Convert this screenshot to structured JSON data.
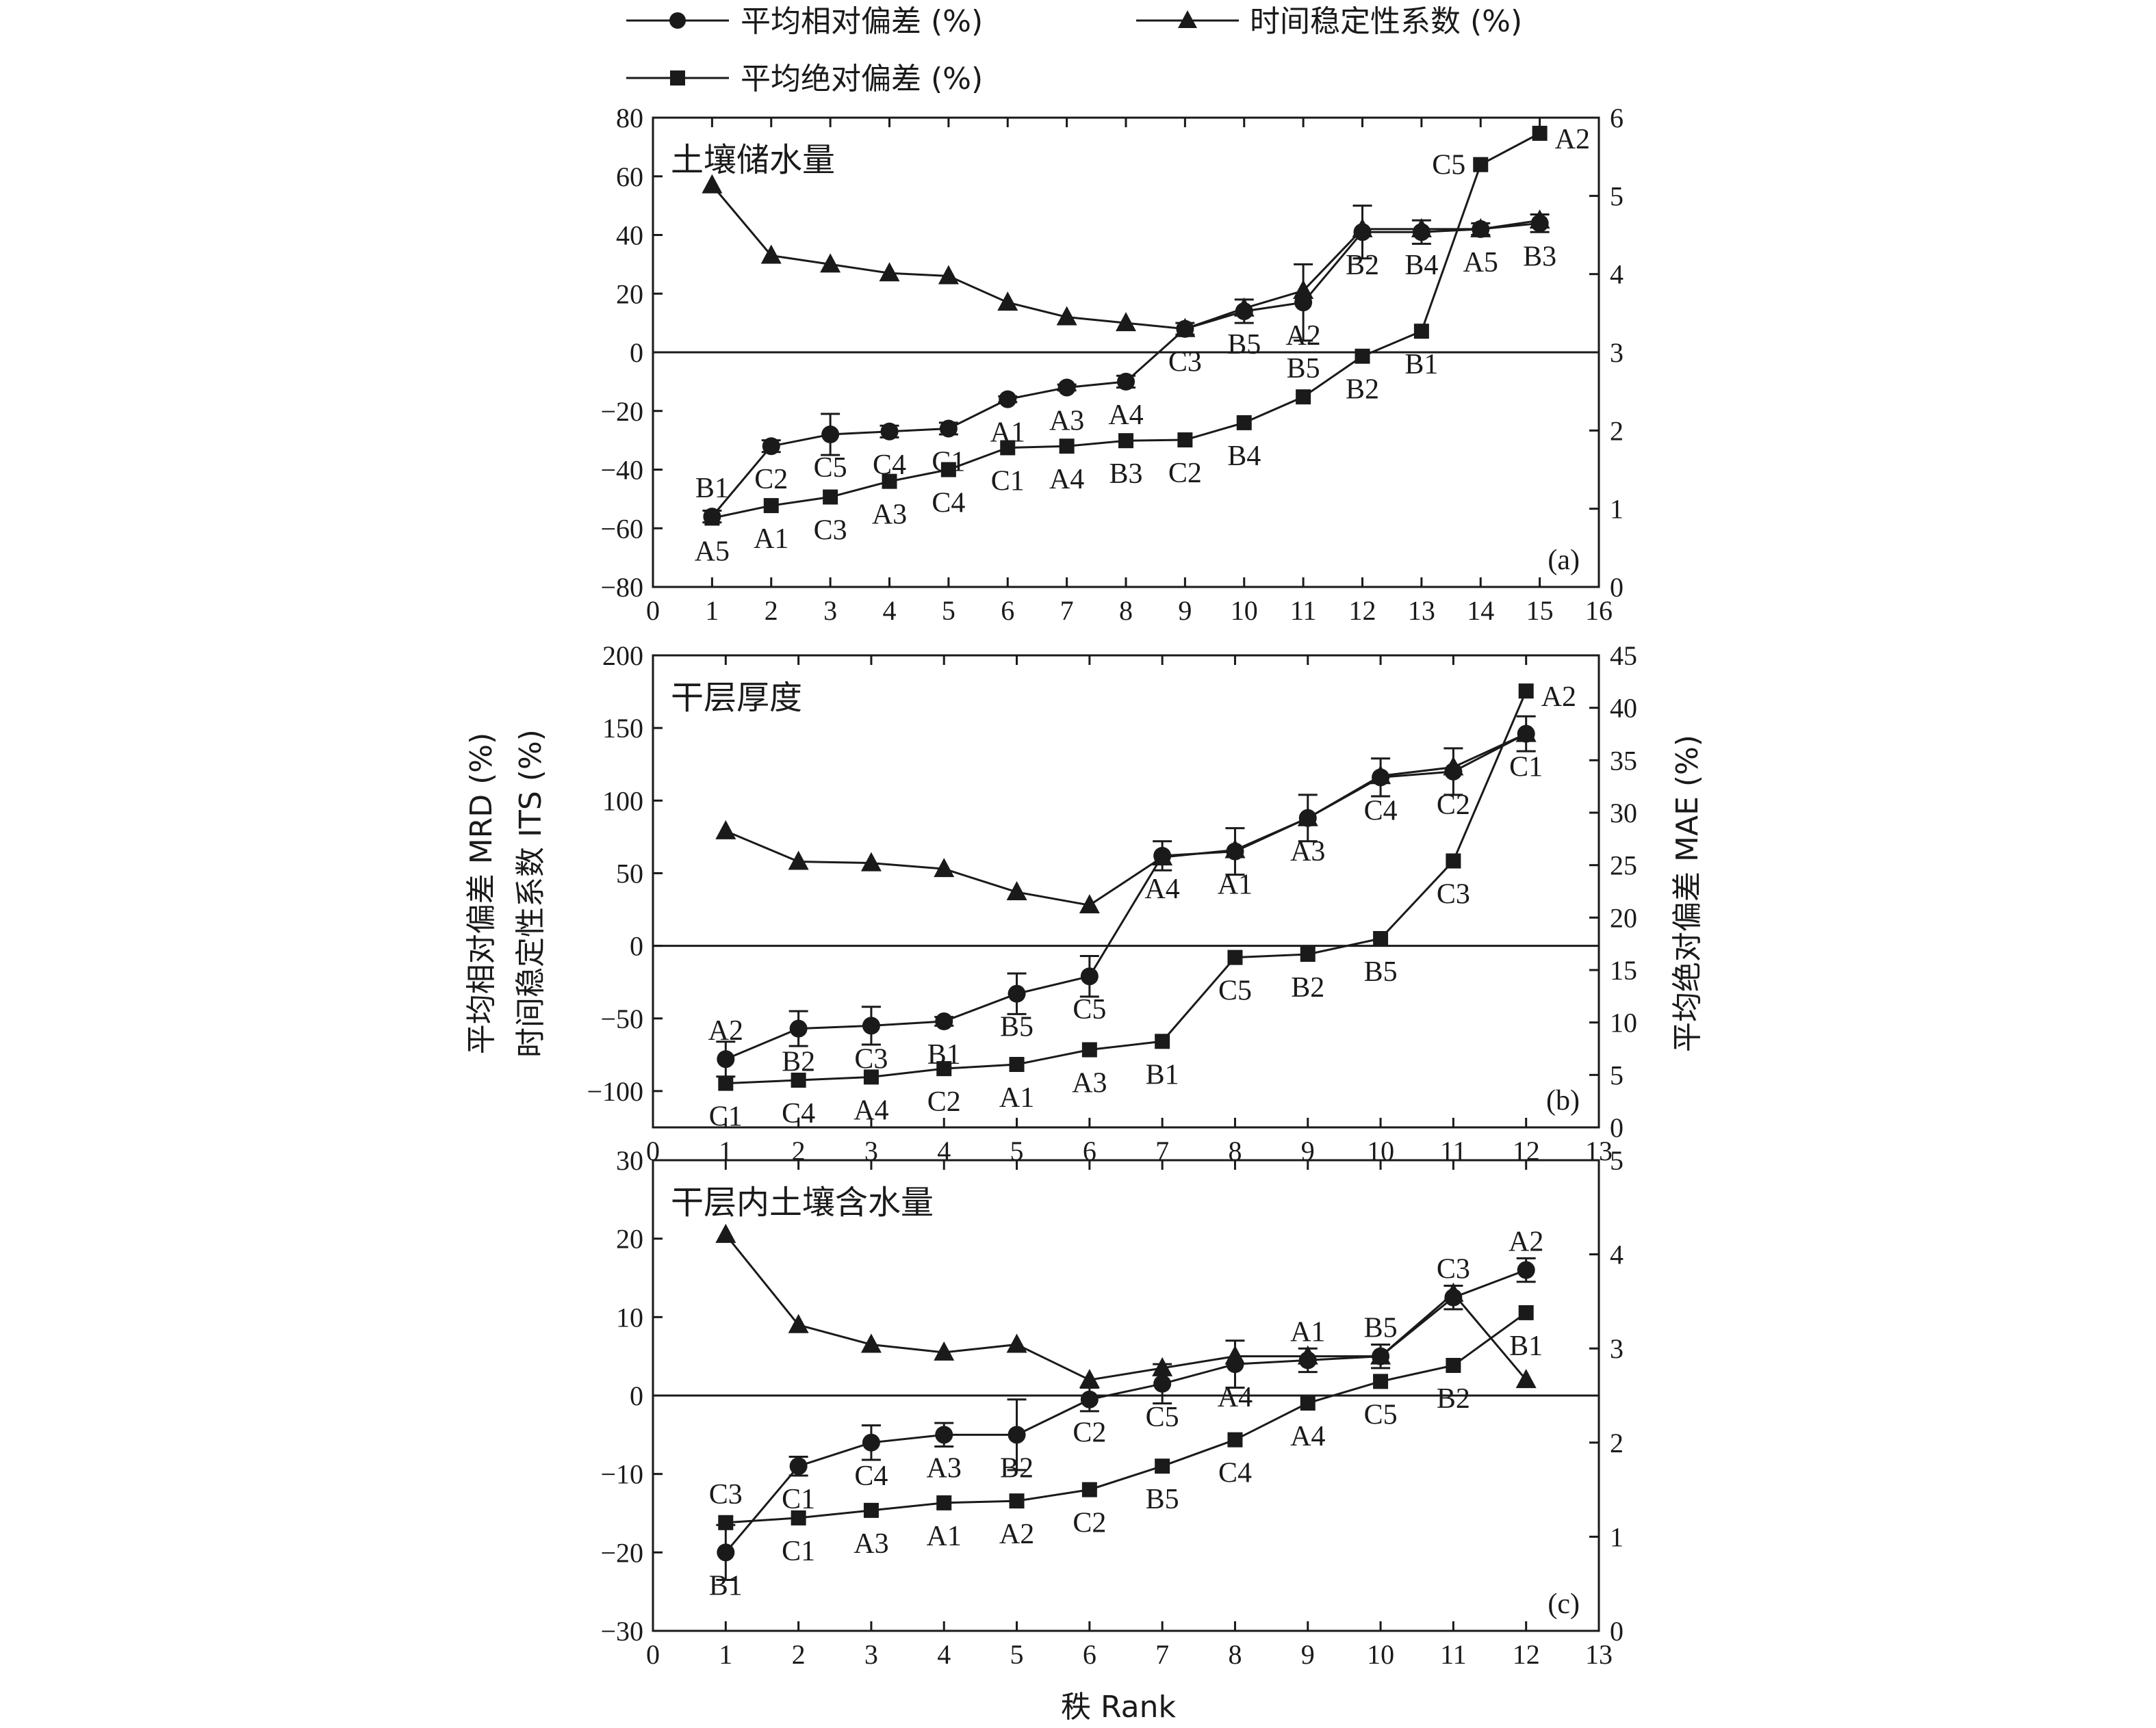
{
  "legend": {
    "entries": [
      {
        "label": "平均相对偏差 (%)",
        "marker": "circle"
      },
      {
        "label": "时间稳定性系数 (%)",
        "marker": "triangle"
      },
      {
        "label": "平均绝对偏差 (%)",
        "marker": "square"
      }
    ]
  },
  "axes": {
    "left_label_line1": "平均相对偏差 MRD (%)",
    "left_label_line2": "时间稳定性系数 ITS (%)",
    "right_label": "平均绝对偏差 MAE (%)",
    "bottom_label": "秩 Rank"
  },
  "colors": {
    "ink": "#1a1a1a",
    "background": "#ffffff"
  },
  "chart_data": [
    {
      "type": "line",
      "panel_tag": "(a)",
      "panel_title": "土壤储水量",
      "xlim": [
        0,
        16
      ],
      "xticks": [
        0,
        1,
        2,
        3,
        4,
        5,
        6,
        7,
        8,
        9,
        10,
        11,
        12,
        13,
        14,
        15,
        16
      ],
      "ylim": [
        -80,
        80
      ],
      "yticks": [
        -80,
        -60,
        -40,
        -20,
        0,
        20,
        40,
        60,
        80
      ],
      "y2lim": [
        0,
        6
      ],
      "y2ticks": [
        0,
        1,
        2,
        3,
        4,
        5,
        6
      ],
      "zero_line": true,
      "series": [
        {
          "name": "平均相对偏差 (%)",
          "marker": "circle",
          "axis": "left",
          "x": [
            1,
            2,
            3,
            4,
            5,
            6,
            7,
            8,
            9,
            10,
            11,
            12,
            13,
            14,
            15
          ],
          "y": [
            -56,
            -32,
            -28,
            -27,
            -26,
            -16,
            -12,
            -10,
            8,
            14,
            17,
            41,
            41,
            42,
            44
          ],
          "err": [
            2,
            2,
            7,
            2,
            2,
            1,
            1,
            2,
            2,
            4,
            13,
            9,
            4,
            2,
            3
          ],
          "labels": [
            "B1",
            "C2",
            "C5",
            "C4",
            "C1",
            "A1",
            "A3",
            "A4",
            "C3",
            "B5",
            "A2",
            "B2",
            "B4",
            "A5",
            "B3"
          ],
          "label_pos": [
            "above",
            "below",
            "below",
            "below",
            "below",
            "below",
            "below",
            "below",
            "below",
            "below",
            "below",
            "below",
            "below",
            "below",
            "below"
          ]
        },
        {
          "name": "时间稳定性系数 (%)",
          "marker": "triangle",
          "axis": "left",
          "x": [
            1,
            2,
            3,
            4,
            5,
            6,
            7,
            8,
            9,
            10,
            11,
            12,
            13,
            14,
            15
          ],
          "y": [
            57,
            33,
            30,
            27,
            26,
            17,
            12,
            10,
            8,
            15,
            21,
            42,
            42,
            42,
            45
          ]
        },
        {
          "name": "平均绝对偏差 (%)",
          "marker": "square",
          "axis": "right",
          "x": [
            1,
            2,
            3,
            4,
            5,
            6,
            7,
            8,
            9,
            10,
            11,
            12,
            13,
            14,
            15
          ],
          "y": [
            0.88,
            1.04,
            1.15,
            1.35,
            1.5,
            1.78,
            1.8,
            1.87,
            1.88,
            2.1,
            2.43,
            2.95,
            3.27,
            5.4,
            5.8
          ],
          "labels": [
            "A5",
            "A1",
            "C3",
            "A3",
            "C4",
            "C1",
            "A4",
            "B3",
            "C2",
            "B4",
            "B5",
            "B2",
            "B1",
            "C5",
            "A2"
          ],
          "label_pos": [
            "below",
            "below",
            "below",
            "below",
            "below",
            "below",
            "below",
            "below",
            "below",
            "below",
            "above",
            "below",
            "below",
            "left",
            "right"
          ]
        }
      ]
    },
    {
      "type": "line",
      "panel_tag": "(b)",
      "panel_title": "干层厚度",
      "xlim": [
        0,
        13
      ],
      "xticks": [
        0,
        1,
        2,
        3,
        4,
        5,
        6,
        7,
        8,
        9,
        10,
        11,
        12,
        13
      ],
      "ylim": [
        -125,
        200
      ],
      "yticks": [
        -100,
        -50,
        0,
        50,
        100,
        150,
        200
      ],
      "y2lim": [
        0,
        45
      ],
      "y2ticks": [
        0,
        5,
        10,
        15,
        20,
        25,
        30,
        35,
        40,
        45
      ],
      "zero_line": true,
      "series": [
        {
          "name": "平均相对偏差 (%)",
          "marker": "circle",
          "axis": "left",
          "x": [
            1,
            2,
            3,
            4,
            5,
            6,
            7,
            8,
            9,
            10,
            11,
            12
          ],
          "y": [
            -78,
            -57,
            -55,
            -52,
            -33,
            -21,
            62,
            65,
            88,
            116,
            120,
            146
          ],
          "err": [
            12,
            12,
            13,
            3,
            14,
            14,
            10,
            16,
            16,
            13,
            16,
            12
          ],
          "labels": [
            "A2",
            "B2",
            "C3",
            "B1",
            "B5",
            "C5",
            "A4",
            "A1",
            "A3",
            "C4",
            "C2",
            "C1"
          ],
          "label_pos": [
            "above",
            "below",
            "below",
            "below",
            "below",
            "below",
            "below",
            "below",
            "below",
            "below",
            "below",
            "below"
          ]
        },
        {
          "name": "时间稳定性系数 (%)",
          "marker": "triangle",
          "axis": "left",
          "x": [
            1,
            2,
            3,
            4,
            5,
            6,
            7,
            8,
            9,
            10,
            11,
            12
          ],
          "y": [
            79,
            58,
            57,
            53,
            37,
            28,
            61,
            66,
            88,
            117,
            123,
            146
          ]
        },
        {
          "name": "平均绝对偏差 (%)",
          "marker": "square",
          "axis": "right",
          "x": [
            1,
            2,
            3,
            4,
            5,
            6,
            7,
            8,
            9,
            10,
            11,
            12
          ],
          "y": [
            4.2,
            4.5,
            4.8,
            5.6,
            6.0,
            7.4,
            8.2,
            16.2,
            16.5,
            18.0,
            25.4,
            41.6
          ],
          "labels": [
            "C1",
            "C4",
            "A4",
            "C2",
            "A1",
            "A3",
            "B1",
            "C5",
            "B2",
            "B5",
            "C3",
            "A2"
          ],
          "label_pos": [
            "below",
            "below",
            "below",
            "below",
            "below",
            "below",
            "below",
            "below",
            "below",
            "below",
            "below",
            "right"
          ]
        }
      ]
    },
    {
      "type": "line",
      "panel_tag": "(c)",
      "panel_title": "干层内土壤含水量",
      "xlim": [
        0,
        13
      ],
      "xticks": [
        0,
        1,
        2,
        3,
        4,
        5,
        6,
        7,
        8,
        9,
        10,
        11,
        12,
        13
      ],
      "ylim": [
        -30,
        30
      ],
      "yticks": [
        -30,
        -20,
        -10,
        0,
        10,
        20,
        30
      ],
      "y2lim": [
        0,
        5
      ],
      "y2ticks": [
        0,
        1,
        2,
        3,
        4,
        5
      ],
      "zero_line": true,
      "series": [
        {
          "name": "平均相对偏差 (%)",
          "marker": "circle",
          "axis": "left",
          "x": [
            1,
            2,
            3,
            4,
            5,
            6,
            7,
            8,
            9,
            10,
            11,
            12
          ],
          "y": [
            -20,
            -9,
            -6,
            -5,
            -5,
            -0.5,
            1.5,
            4,
            4.5,
            5,
            12.5,
            16
          ],
          "err": [
            3.5,
            1.2,
            2.2,
            1.5,
            4.5,
            1.5,
            2.5,
            3,
            1.5,
            1.5,
            1.5,
            1.5
          ],
          "labels": [
            "B1",
            "C1",
            "C4",
            "A3",
            "B2",
            "C2",
            "C5",
            "A4",
            "A1",
            "B5",
            "C3",
            "A2"
          ],
          "label_pos": [
            "below",
            "below",
            "below",
            "below",
            "below",
            "below",
            "below",
            "below",
            "above",
            "above",
            "above",
            "above"
          ]
        },
        {
          "name": "时间稳定性系数 (%)",
          "marker": "triangle",
          "axis": "left",
          "x": [
            1,
            2,
            3,
            4,
            5,
            6,
            7,
            8,
            9,
            10,
            11,
            12
          ],
          "y": [
            20.5,
            9,
            6.5,
            5.5,
            6.5,
            2,
            3.5,
            5,
            5,
            5,
            13,
            2
          ]
        },
        {
          "name": "平均绝对偏差 (%)",
          "marker": "square",
          "axis": "right",
          "x": [
            1,
            2,
            3,
            4,
            5,
            6,
            7,
            8,
            9,
            10,
            11,
            12
          ],
          "y": [
            1.15,
            1.2,
            1.28,
            1.36,
            1.38,
            1.5,
            1.75,
            2.03,
            2.42,
            2.65,
            2.82,
            3.38
          ],
          "labels": [
            "C3",
            "C1",
            "A3",
            "A1",
            "A2",
            "C2",
            "B5",
            "C4",
            "A4",
            "C5",
            "B2",
            "B1"
          ],
          "label_pos": [
            "above",
            "below",
            "below",
            "below",
            "below",
            "below",
            "below",
            "below",
            "below",
            "below",
            "below",
            "below"
          ]
        }
      ]
    }
  ]
}
